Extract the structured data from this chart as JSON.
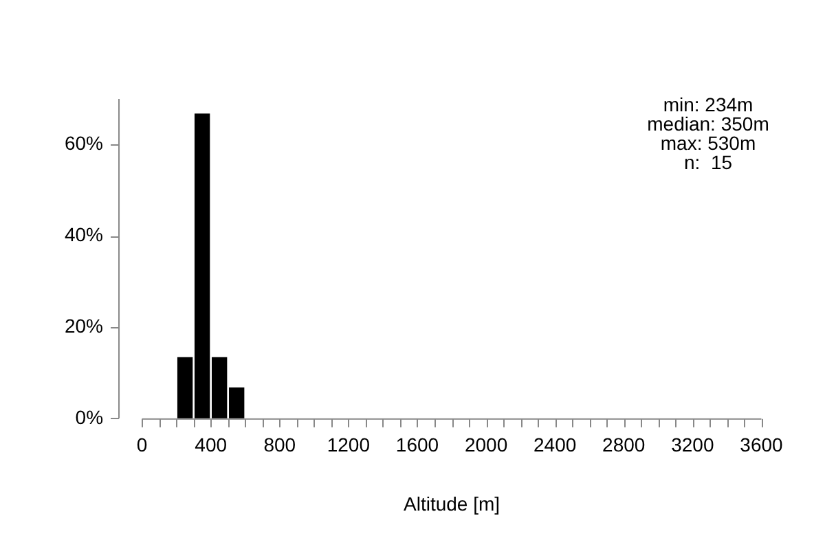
{
  "chart_data": {
    "type": "histogram",
    "xlabel": "Altitude [m]",
    "bins": [
      200,
      300,
      400,
      500,
      600
    ],
    "values": [
      13.3,
      66.7,
      13.3,
      6.7
    ],
    "color": "#000000",
    "xlim": [
      0,
      3600
    ],
    "xticks": [
      0,
      {
        "value": 100,
        "label": null
      },
      {
        "value": 200,
        "label": null
      },
      {
        "value": 300,
        "label": null
      },
      400,
      {
        "value": 500,
        "label": null
      },
      {
        "value": 600,
        "label": null
      },
      {
        "value": 700,
        "label": null
      },
      800,
      {
        "value": 900,
        "label": null
      },
      {
        "value": 1000,
        "label": null
      },
      {
        "value": 1100,
        "label": null
      },
      1200,
      {
        "value": 1300,
        "label": null
      },
      {
        "value": 1400,
        "label": null
      },
      {
        "value": 1500,
        "label": null
      },
      1600,
      {
        "value": 1700,
        "label": null
      },
      {
        "value": 1800,
        "label": null
      },
      {
        "value": 1900,
        "label": null
      },
      2000,
      {
        "value": 2100,
        "label": null
      },
      {
        "value": 2200,
        "label": null
      },
      {
        "value": 2300,
        "label": null
      },
      2400,
      {
        "value": 2500,
        "label": null
      },
      {
        "value": 2600,
        "label": null
      },
      {
        "value": 2700,
        "label": null
      },
      2800,
      {
        "value": 2900,
        "label": null
      },
      {
        "value": 3000,
        "label": null
      },
      {
        "value": 3100,
        "label": null
      },
      3200,
      {
        "value": 3300,
        "label": null
      },
      {
        "value": 3400,
        "label": null
      },
      {
        "value": 3500,
        "label": null
      },
      3600
    ],
    "ylim": [
      0,
      70
    ],
    "yticks": [
      {
        "value": 0,
        "label": "0%"
      },
      {
        "value": 20,
        "label": "20%"
      },
      {
        "value": 40,
        "label": "40%"
      },
      {
        "value": 60,
        "label": "60%"
      }
    ],
    "grid": false,
    "legend": false,
    "annotations": [
      "min: 234m",
      "median: 350m",
      "max: 530m",
      "n:  15"
    ]
  }
}
